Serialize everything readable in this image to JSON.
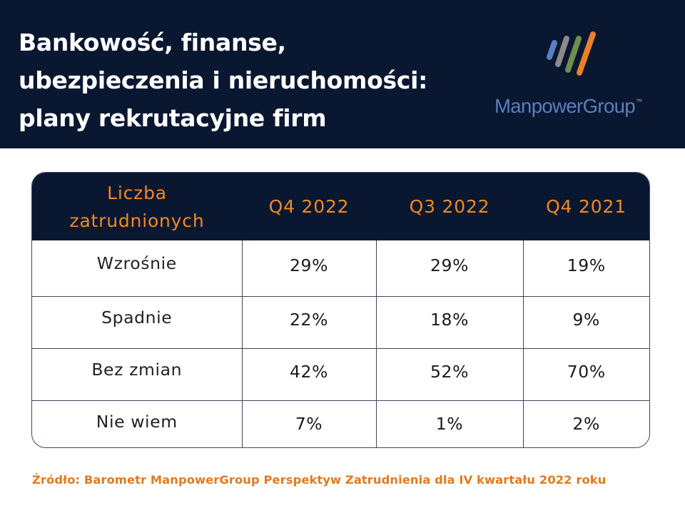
{
  "title": {
    "line1": "Bankowość, finanse,",
    "line2": "ubezpieczenia i nieruchomości:",
    "line3": "plany rekrutacyjne firm"
  },
  "logo": {
    "text_manpower": "Manpower",
    "text_group": "Group",
    "trademark": "™",
    "colors": {
      "blue": "#5a7fc0",
      "gray": "#8a8a8a",
      "green": "#6e8e4e",
      "orange": "#e8812a",
      "text": "#5a7fc0"
    }
  },
  "table": {
    "header_first_line1": "Liczba",
    "header_first_line2": "zatrudnionych",
    "columns": [
      "Q4 2022",
      "Q3 2022",
      "Q4 2021"
    ],
    "rows": [
      {
        "label": "Wzrośnie",
        "values": [
          "29%",
          "29%",
          "19%"
        ]
      },
      {
        "label": "Spadnie",
        "values": [
          "22%",
          "18%",
          "9%"
        ]
      },
      {
        "label": "Bez zmian",
        "values": [
          "42%",
          "52%",
          "70%"
        ]
      },
      {
        "label": "Nie wiem",
        "values": [
          "7%",
          "1%",
          "2%"
        ]
      }
    ]
  },
  "source": "Źródło: Barometr ManpowerGroup Perspektyw Zatrudnienia dla IV kwartału 2022 roku",
  "colors": {
    "navy": "#0a1730",
    "orange": "#f08a24",
    "source_orange": "#e07a1f"
  }
}
